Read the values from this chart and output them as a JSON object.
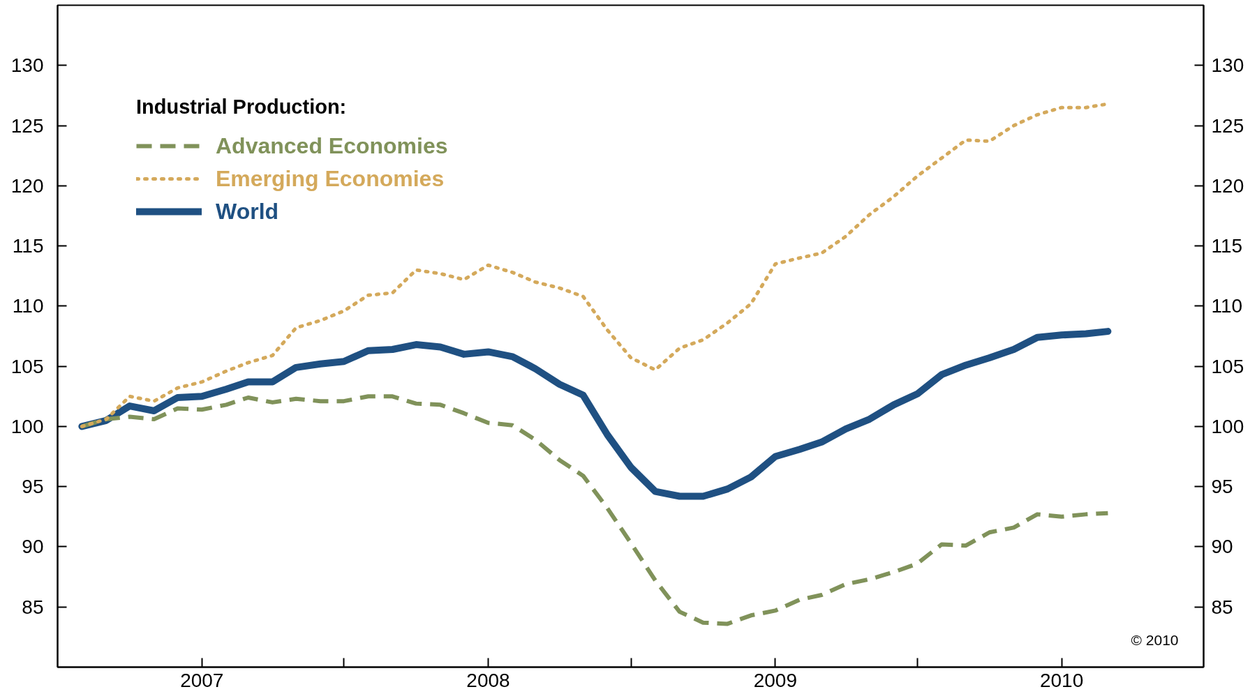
{
  "chart_data": {
    "type": "line",
    "legend_title": "Industrial Production:",
    "legend": "top left",
    "annotations": [
      "© 2010"
    ],
    "x": [
      "2006-08",
      "2006-09",
      "2006-10",
      "2006-11",
      "2006-12",
      "2007-01",
      "2007-02",
      "2007-03",
      "2007-04",
      "2007-05",
      "2007-06",
      "2007-07",
      "2007-08",
      "2007-09",
      "2007-10",
      "2007-11",
      "2007-12",
      "2008-01",
      "2008-02",
      "2008-03",
      "2008-04",
      "2008-05",
      "2008-06",
      "2008-07",
      "2008-08",
      "2008-09",
      "2008-10",
      "2008-11",
      "2008-12",
      "2009-01",
      "2009-02",
      "2009-03",
      "2009-04",
      "2009-05",
      "2009-06",
      "2009-07",
      "2009-08",
      "2009-09",
      "2009-10",
      "2009-11",
      "2009-12",
      "2010-01",
      "2010-02",
      "2010-03"
    ],
    "series": [
      {
        "name": "Advanced Economies",
        "color": "#80925a",
        "line_style": "dashed",
        "values": [
          100.0,
          100.6,
          100.8,
          100.6,
          101.5,
          101.4,
          101.8,
          102.4,
          102.0,
          102.3,
          102.1,
          102.1,
          102.5,
          102.5,
          101.9,
          101.8,
          101.1,
          100.3,
          100.1,
          98.9,
          97.2,
          95.9,
          93.2,
          90.3,
          87.2,
          84.6,
          83.7,
          83.6,
          84.3,
          84.7,
          85.6,
          86.0,
          86.9,
          87.3,
          87.9,
          88.6,
          90.2,
          90.1,
          91.2,
          91.6,
          92.7,
          92.5,
          92.7,
          92.8
        ]
      },
      {
        "name": "Emerging Economies",
        "color": "#d4a95b",
        "line_style": "dotted",
        "values": [
          100.0,
          100.6,
          102.5,
          102.1,
          103.2,
          103.7,
          104.6,
          105.3,
          105.9,
          108.2,
          108.8,
          109.6,
          110.9,
          111.1,
          113.0,
          112.7,
          112.2,
          113.4,
          112.8,
          112.0,
          111.5,
          110.8,
          108.0,
          105.7,
          104.7,
          106.5,
          107.2,
          108.6,
          110.2,
          113.5,
          114.0,
          114.4,
          115.8,
          117.6,
          119.1,
          120.8,
          122.3,
          123.8,
          123.7,
          125.0,
          125.9,
          126.5,
          126.5,
          126.8
        ]
      },
      {
        "name": "World",
        "color": "#1f5082",
        "line_style": "solid",
        "values": [
          100.0,
          100.5,
          101.7,
          101.3,
          102.4,
          102.5,
          103.1,
          103.7,
          103.7,
          104.9,
          105.2,
          105.4,
          106.3,
          106.4,
          106.8,
          106.6,
          106.0,
          106.2,
          105.8,
          104.8,
          103.5,
          102.6,
          99.3,
          96.6,
          94.6,
          94.2,
          94.2,
          94.8,
          95.8,
          97.5,
          98.1,
          98.7,
          99.8,
          100.6,
          101.8,
          102.7,
          104.3,
          105.1,
          105.7,
          106.4,
          107.4,
          107.6,
          107.7,
          107.9
        ]
      }
    ],
    "xlim": [
      "2006-07",
      "2010-07"
    ],
    "xticks": [
      {
        "value": "2007-01",
        "label": "2007"
      },
      {
        "value": "2007-07",
        "label": null
      },
      {
        "value": "2008-01",
        "label": "2008"
      },
      {
        "value": "2008-07",
        "label": null
      },
      {
        "value": "2009-01",
        "label": "2009"
      },
      {
        "value": "2009-07",
        "label": null
      },
      {
        "value": "2010-01",
        "label": "2010"
      }
    ],
    "ylim": [
      80,
      135
    ],
    "yticks": [
      85,
      90,
      95,
      100,
      105,
      110,
      115,
      120,
      125,
      130
    ],
    "y2lim": [
      80,
      135
    ],
    "y2ticks": [
      85,
      90,
      95,
      100,
      105,
      110,
      115,
      120,
      125,
      130
    ]
  }
}
